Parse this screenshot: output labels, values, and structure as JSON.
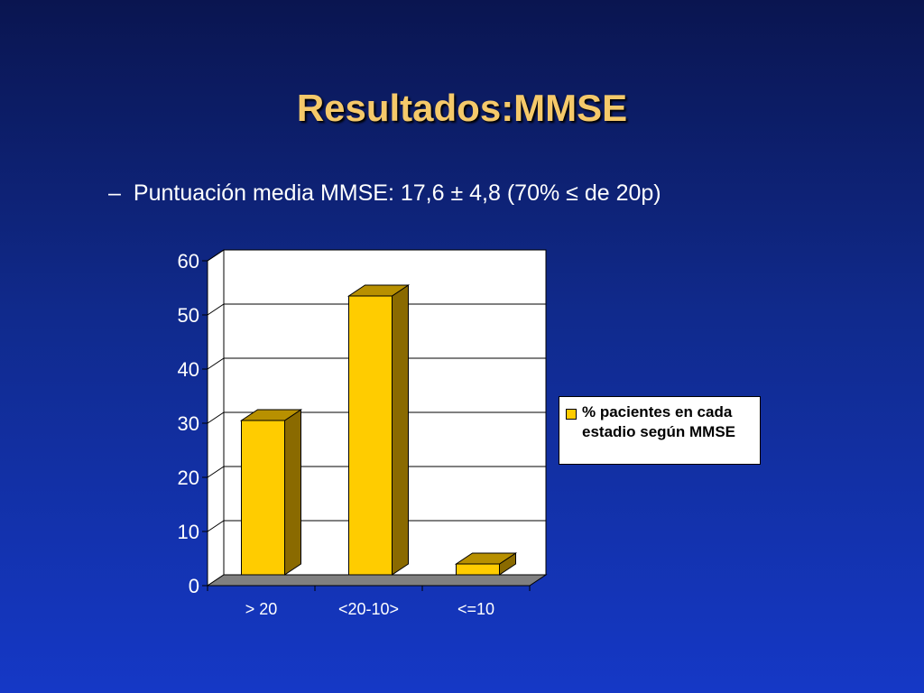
{
  "slide": {
    "title": "Resultados:MMSE",
    "bullet_dash": "–",
    "bullet_text": "Puntuación media MMSE: 17,6 ±  4,8 (70% ≤ de 20p)"
  },
  "chart_data": {
    "type": "bar",
    "categories": [
      "> 20",
      "<20-10>",
      "<=10"
    ],
    "series": [
      {
        "name": "% pacientes en cada estadio según MMSE",
        "values": [
          30.5,
          53.5,
          4
        ]
      }
    ],
    "ylim": [
      0,
      60
    ],
    "yticks": [
      0,
      10,
      20,
      30,
      40,
      50,
      60
    ],
    "grid": true,
    "legend": "right",
    "colors": {
      "bar_face": "#ffcc00",
      "bar_side": "#8a6a00",
      "bar_top": "#b89000",
      "plot_bg": "#ffffff",
      "floor": "#808080"
    }
  }
}
